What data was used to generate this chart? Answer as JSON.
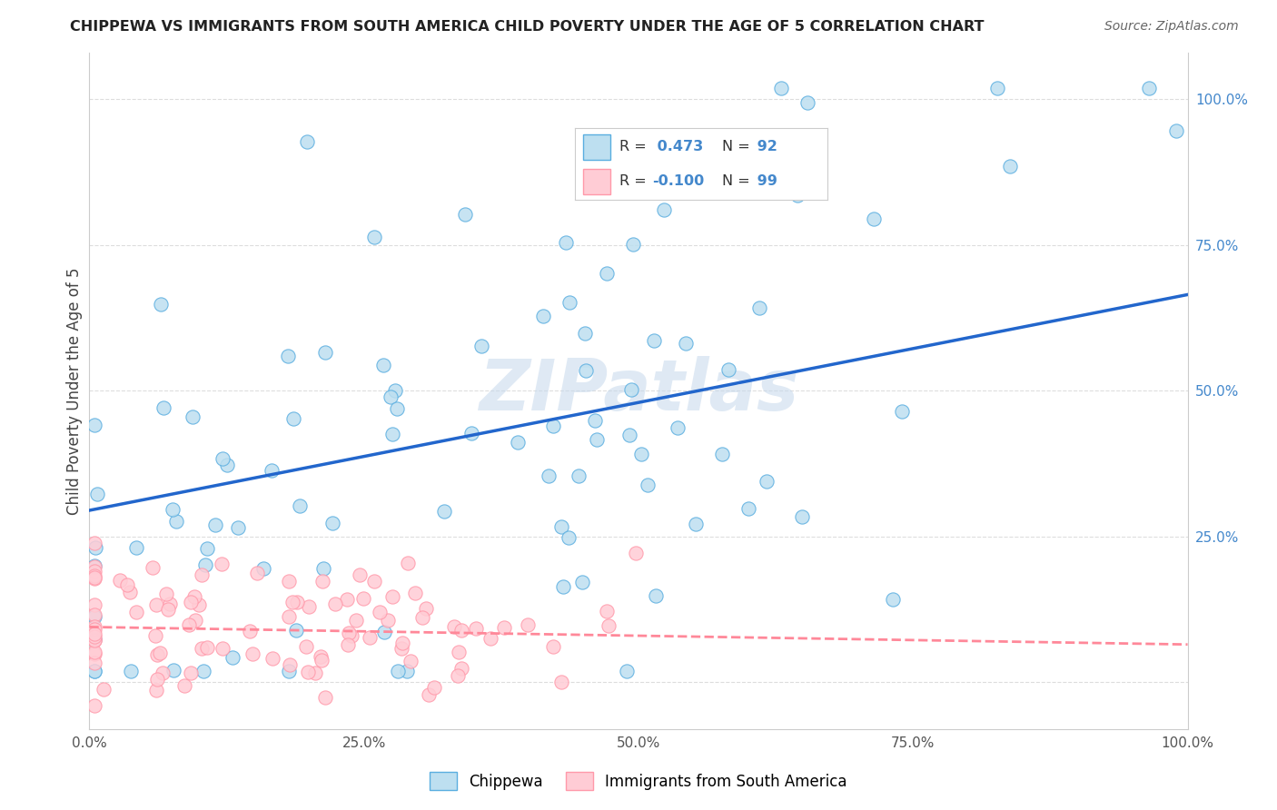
{
  "title": "CHIPPEWA VS IMMIGRANTS FROM SOUTH AMERICA CHILD POVERTY UNDER THE AGE OF 5 CORRELATION CHART",
  "source": "Source: ZipAtlas.com",
  "ylabel": "Child Poverty Under the Age of 5",
  "xlim": [
    0.0,
    1.0
  ],
  "ylim": [
    -0.08,
    1.08
  ],
  "x_ticks": [
    0.0,
    0.25,
    0.5,
    0.75,
    1.0
  ],
  "x_tick_labels": [
    "0.0%",
    "25.0%",
    "50.0%",
    "75.0%",
    "100.0%"
  ],
  "y_ticks": [
    0.0,
    0.25,
    0.5,
    0.75,
    1.0
  ],
  "y_tick_labels_right": [
    "",
    "25.0%",
    "50.0%",
    "75.0%",
    "100.0%"
  ],
  "chippewa_R": 0.473,
  "chippewa_N": 92,
  "south_america_R": -0.1,
  "south_america_N": 99,
  "chippewa_fill": "#BDDFF0",
  "chippewa_edge": "#5AAEE0",
  "south_america_fill": "#FFCCD5",
  "south_america_edge": "#FF99AA",
  "chippewa_line_color": "#2266CC",
  "south_america_line_color": "#FF8899",
  "background_color": "#FFFFFF",
  "grid_color": "#DDDDDD",
  "watermark": "ZIPatlas",
  "legend_label_1": "Chippewa",
  "legend_label_2": "Immigrants from South America",
  "chip_trend_x0": 0.0,
  "chip_trend_y0": 0.295,
  "chip_trend_x1": 1.0,
  "chip_trend_y1": 0.665,
  "sa_trend_x0": 0.0,
  "sa_trend_y0": 0.095,
  "sa_trend_x1": 1.0,
  "sa_trend_y1": 0.065
}
